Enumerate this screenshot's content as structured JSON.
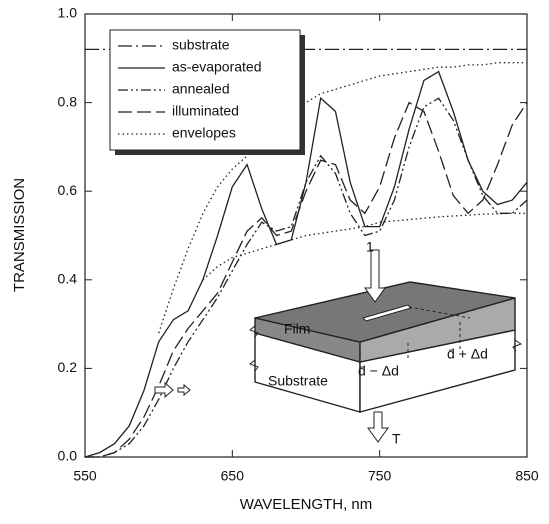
{
  "chart_data": {
    "type": "line",
    "xlabel": "WAVELENGTH, nm",
    "ylabel": "TRANSMISSION",
    "x": [
      550,
      560,
      570,
      580,
      590,
      600,
      610,
      620,
      630,
      640,
      650,
      660,
      670,
      680,
      690,
      700,
      710,
      720,
      730,
      740,
      750,
      760,
      770,
      780,
      790,
      800,
      810,
      820,
      830,
      840,
      850
    ],
    "xlim": [
      550,
      850
    ],
    "xticks": [
      550,
      650,
      750,
      850
    ],
    "ylim": [
      0,
      1
    ],
    "yticks": [
      {
        "value": 0,
        "label": "0.0"
      },
      {
        "value": 0.2,
        "label": "0.2"
      },
      {
        "value": 0.4,
        "label": "0.4"
      },
      {
        "value": 0.6,
        "label": "0.6"
      },
      {
        "value": 0.8,
        "label": "0.8"
      },
      {
        "value": 1,
        "label": "1.0"
      }
    ],
    "legend": "upper left",
    "series": [
      {
        "name": "substrate",
        "color": "#222",
        "dash": "14 4 2 4",
        "values": [
          0.92,
          0.92,
          0.92,
          0.92,
          0.92,
          0.92,
          0.92,
          0.92,
          0.92,
          0.92,
          0.92,
          0.92,
          0.92,
          0.92,
          0.92,
          0.92,
          0.92,
          0.92,
          0.92,
          0.92,
          0.92,
          0.92,
          0.92,
          0.92,
          0.92,
          0.92,
          0.92,
          0.92,
          0.92,
          0.92,
          0.92
        ]
      },
      {
        "name": "as-evaporated",
        "color": "#222",
        "dash": "none",
        "values": [
          0,
          0.01,
          0.03,
          0.07,
          0.15,
          0.26,
          0.31,
          0.33,
          0.4,
          0.5,
          0.61,
          0.66,
          0.56,
          0.48,
          0.49,
          0.62,
          0.81,
          0.78,
          0.62,
          0.52,
          0.52,
          0.61,
          0.74,
          0.85,
          0.87,
          0.78,
          0.67,
          0.6,
          0.57,
          0.58,
          0.62
        ]
      },
      {
        "name": "annealed",
        "color": "#222",
        "dash": "10 3 2 3 2 3",
        "values": [
          0,
          0,
          0.01,
          0.03,
          0.07,
          0.13,
          0.2,
          0.26,
          0.31,
          0.36,
          0.42,
          0.48,
          0.53,
          0.51,
          0.52,
          0.62,
          0.68,
          0.64,
          0.55,
          0.5,
          0.51,
          0.58,
          0.7,
          0.79,
          0.81,
          0.76,
          0.67,
          0.59,
          0.55,
          0.55,
          0.58
        ]
      },
      {
        "name": "illuminated",
        "color": "#222",
        "dash": "14 5",
        "values": [
          0,
          0,
          0.01,
          0.04,
          0.09,
          0.16,
          0.24,
          0.29,
          0.33,
          0.37,
          0.44,
          0.51,
          0.54,
          0.5,
          0.51,
          0.6,
          0.67,
          0.66,
          0.58,
          0.55,
          0.61,
          0.72,
          0.8,
          0.78,
          0.69,
          0.59,
          0.55,
          0.58,
          0.66,
          0.75,
          0.8
        ]
      },
      {
        "name": "envelopes",
        "color": "#222",
        "dash": "1.5 3",
        "values": [
          null,
          null,
          null,
          null,
          null,
          0.28,
          0.38,
          0.47,
          0.55,
          0.61,
          0.65,
          0.68,
          0.72,
          0.76,
          0.79,
          0.8,
          0.82,
          0.83,
          0.84,
          0.85,
          0.86,
          0.865,
          0.87,
          0.875,
          0.88,
          0.88,
          0.885,
          0.885,
          0.89,
          0.89,
          0.89
        ]
      },
      {
        "color": "#222",
        "dash": "1.5 3",
        "values": [
          null,
          null,
          null,
          null,
          null,
          null,
          null,
          null,
          0.4,
          0.43,
          0.45,
          0.46,
          0.47,
          0.48,
          0.49,
          0.5,
          0.505,
          0.51,
          0.515,
          0.52,
          0.53,
          0.533,
          0.536,
          0.539,
          0.542,
          0.544,
          0.546,
          0.548,
          0.549,
          0.55,
          0.55
        ]
      }
    ],
    "annotations": {
      "incident": "1",
      "film": "Film",
      "substrate": "Substrate",
      "thin": "d̄ − Δd",
      "thick": "d̄ + Δd",
      "transmitted": "T"
    }
  }
}
